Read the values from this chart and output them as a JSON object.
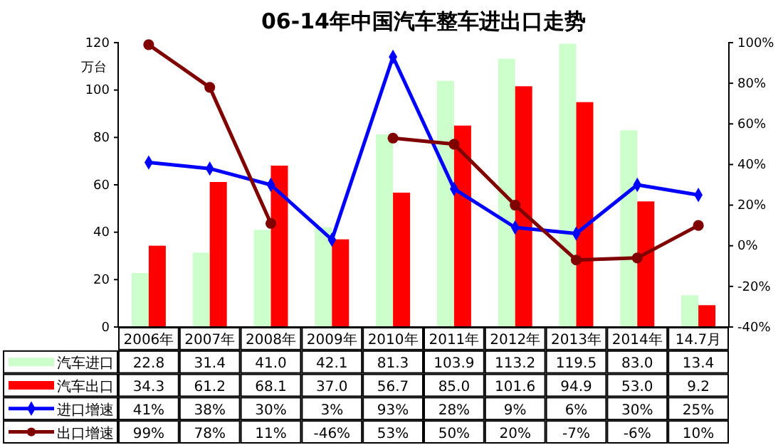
{
  "chart_data": {
    "type": "bar",
    "title": "06-14年中国汽车整车进出口走势",
    "ylabel": "万台",
    "categories": [
      "2006年",
      "2007年",
      "2008年",
      "2009年",
      "2010年",
      "2011年",
      "2012年",
      "2013年",
      "2014年",
      "14.7月"
    ],
    "series": [
      {
        "name": "汽车进口",
        "type": "bar",
        "color": "#ccffcc",
        "values": [
          22.8,
          31.4,
          41.0,
          42.1,
          81.3,
          103.9,
          113.2,
          119.5,
          83.0,
          13.4
        ],
        "value_labels": [
          "22.8",
          "31.4",
          "41.0",
          "42.1",
          "81.3",
          "103.9",
          "113.2",
          "119.5",
          "83.0",
          "13.4"
        ]
      },
      {
        "name": "汽车出口",
        "type": "bar",
        "color": "#ff0000",
        "values": [
          34.3,
          61.2,
          68.1,
          37.0,
          56.7,
          85.0,
          101.6,
          94.9,
          53.0,
          9.2
        ],
        "value_labels": [
          "34.3",
          "61.2",
          "68.1",
          "37.0",
          "56.7",
          "85.0",
          "101.6",
          "94.9",
          "53.0",
          "9.2"
        ]
      },
      {
        "name": "进口增速",
        "type": "line",
        "axis": "y2",
        "marker": "diamond",
        "color": "#0000ff",
        "values": [
          41,
          38,
          30,
          3,
          93,
          28,
          9,
          6,
          30,
          25
        ],
        "value_labels": [
          "41%",
          "38%",
          "30%",
          "3%",
          "93%",
          "28%",
          "9%",
          "6%",
          "30%",
          "25%"
        ]
      },
      {
        "name": "出口增速",
        "type": "line",
        "axis": "y2",
        "marker": "circle",
        "color": "#800000",
        "values": [
          99,
          78,
          11,
          null,
          53,
          50,
          20,
          -7,
          -6,
          10
        ],
        "value_labels": [
          "99%",
          "78%",
          "11%",
          "-46%",
          "53%",
          "50%",
          "20%",
          "-7%",
          "-6%",
          "10%"
        ]
      }
    ],
    "ylim": [
      0,
      120
    ],
    "yticks": [
      0,
      20,
      40,
      60,
      80,
      100,
      120
    ],
    "y2lim": [
      -40,
      100
    ],
    "y2ticks": [
      {
        "value": -40,
        "label": "-40%"
      },
      {
        "value": -20,
        "label": "-20%"
      },
      {
        "value": 0,
        "label": "0%"
      },
      {
        "value": 20,
        "label": "20%"
      },
      {
        "value": 40,
        "label": "40%"
      },
      {
        "value": 60,
        "label": "60%"
      },
      {
        "value": 80,
        "label": "80%"
      },
      {
        "value": 100,
        "label": "100%"
      }
    ],
    "legend": "bottom",
    "grid": false
  }
}
